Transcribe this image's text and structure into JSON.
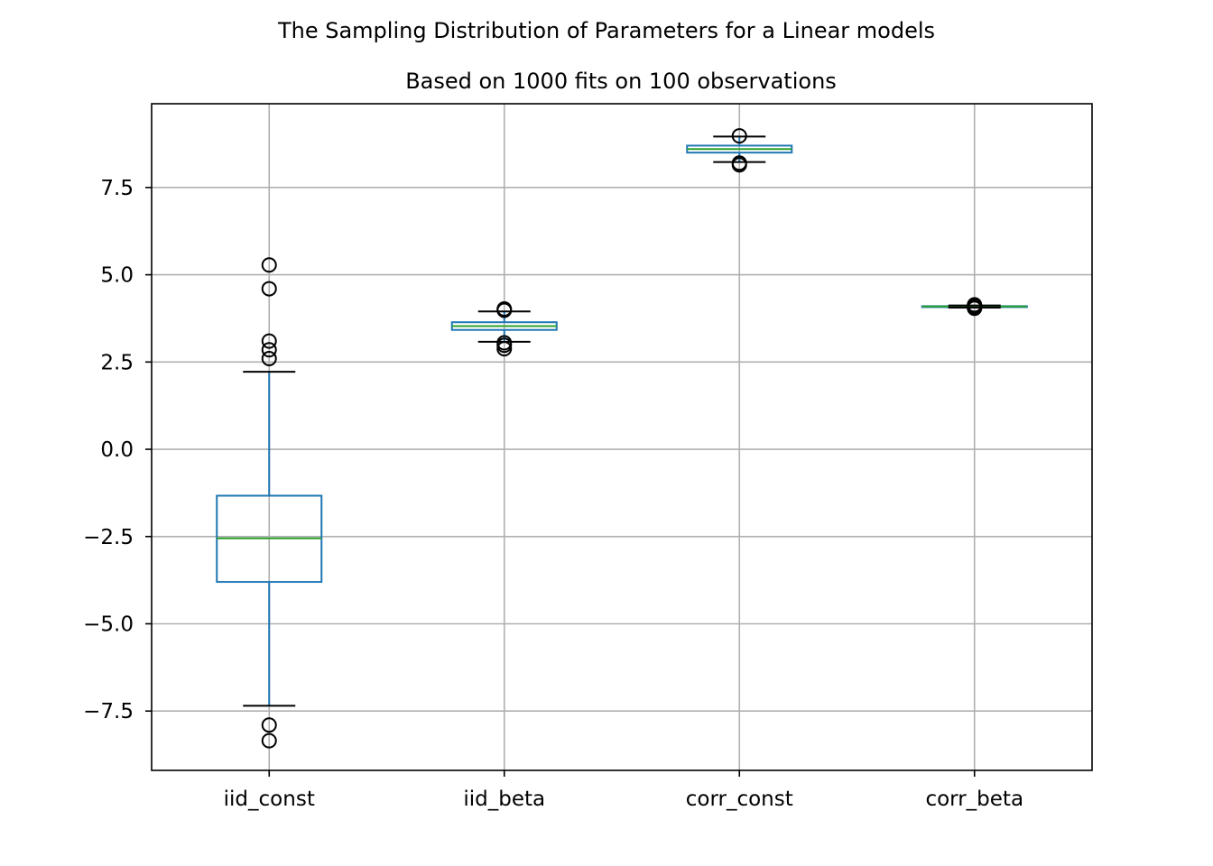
{
  "chart_data": {
    "type": "box",
    "title": "The Sampling Distribution of Parameters for a Linear models",
    "subtitle": "Based on 1000 fits on 100 observations",
    "xlabel": "",
    "ylabel": "",
    "ylim": [
      -9.2,
      9.9
    ],
    "yticks": [
      -7.5,
      -5.0,
      -2.5,
      0.0,
      2.5,
      5.0,
      7.5
    ],
    "ytick_labels": [
      "−7.5",
      "−5.0",
      "−2.5",
      "0.0",
      "2.5",
      "5.0",
      "7.5"
    ],
    "grid": true,
    "categories": [
      "iid_const",
      "iid_beta",
      "corr_const",
      "corr_beta"
    ],
    "boxes": [
      {
        "name": "iid_const",
        "whisker_low": -7.35,
        "q1": -3.8,
        "median": -2.55,
        "q3": -1.33,
        "whisker_high": 2.22,
        "outliers": [
          5.28,
          4.6,
          3.1,
          2.85,
          2.6,
          -7.9,
          -8.35
        ]
      },
      {
        "name": "iid_beta",
        "whisker_low": 3.08,
        "q1": 3.42,
        "median": 3.53,
        "q3": 3.64,
        "whisker_high": 3.95,
        "outliers": [
          4.02,
          3.98,
          3.05,
          2.98,
          2.88
        ]
      },
      {
        "name": "corr_const",
        "whisker_low": 8.23,
        "q1": 8.5,
        "median": 8.6,
        "q3": 8.7,
        "whisker_high": 8.96,
        "outliers": [
          8.98,
          8.2,
          8.15
        ]
      },
      {
        "name": "corr_beta",
        "whisker_low": 4.06,
        "q1": 4.08,
        "median": 4.09,
        "q3": 4.1,
        "whisker_high": 4.12,
        "outliers": [
          4.14,
          4.12,
          4.1,
          4.06,
          4.04
        ]
      }
    ],
    "colors": {
      "box": "#1f77b4",
      "median": "#2ca02c",
      "whisker_cap": "#000000",
      "grid": "#b0b0b0"
    }
  }
}
